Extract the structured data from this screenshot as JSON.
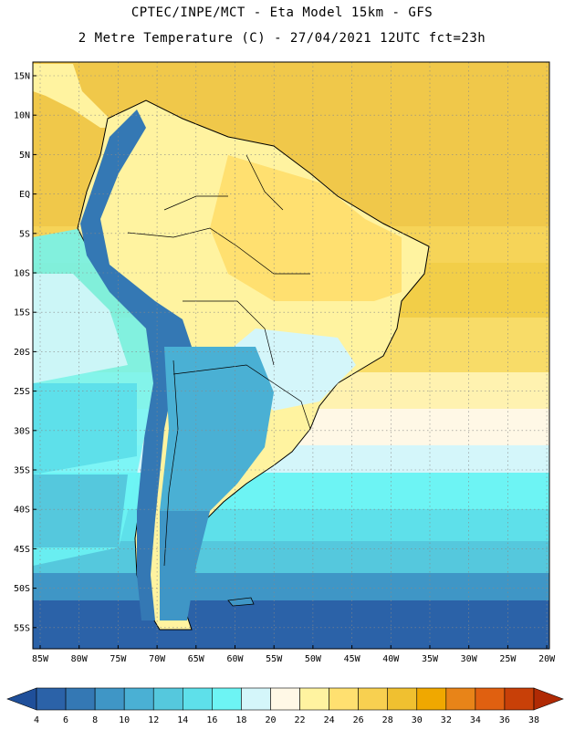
{
  "header": {
    "title_line1": "CPTEC/INPE/MCT -  Eta Model 15km - GFS",
    "title_line2": "2 Metre Temperature (C) - 27/04/2021 12UTC fct=23h"
  },
  "map": {
    "lat_labels": [
      "15N",
      "10N",
      "5N",
      "EQ",
      "5S",
      "10S",
      "15S",
      "20S",
      "25S",
      "30S",
      "35S",
      "40S",
      "45S",
      "50S",
      "55S"
    ],
    "lon_labels": [
      "85W",
      "80W",
      "75W",
      "70W",
      "65W",
      "60W",
      "55W",
      "50W",
      "45W",
      "40W",
      "35W",
      "30W",
      "25W",
      "20W"
    ],
    "gridlines": true
  },
  "colorbar": {
    "labels": [
      "4",
      "6",
      "8",
      "10",
      "12",
      "14",
      "16",
      "18",
      "20",
      "22",
      "24",
      "26",
      "28",
      "30",
      "32",
      "34",
      "36",
      "38"
    ],
    "colors": [
      "#1f4f9a",
      "#2b62a8",
      "#3478b4",
      "#3f96c6",
      "#4ab0d4",
      "#55c8dd",
      "#5ee0ea",
      "#6df4f4",
      "#d4f6fa",
      "#fff8e6",
      "#fff3a0",
      "#ffe070",
      "#f8d050",
      "#f0c030",
      "#f0a800",
      "#e88418",
      "#e06010",
      "#c84008",
      "#b02a04"
    ]
  }
}
